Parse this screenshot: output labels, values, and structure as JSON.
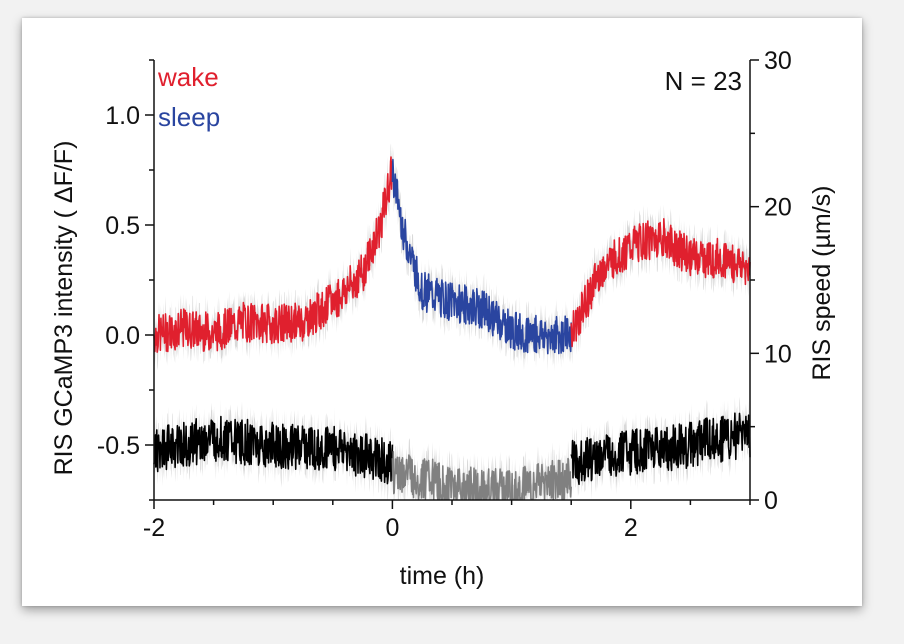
{
  "chart_data": {
    "type": "line",
    "xlabel": "time (h)",
    "ylabel_left": "RIS GCaMP3 intensity ( ΔF/F)",
    "ylabel_right": "RIS speed (µm/s)",
    "xlim": [
      -2,
      3
    ],
    "ylim_left": [
      -0.75,
      1.25
    ],
    "ylim_right": [
      0,
      30
    ],
    "x_ticks": [
      -2,
      0,
      2
    ],
    "x_tick_labels": [
      "-2",
      "0",
      "2"
    ],
    "y_left_ticks": [
      -0.5,
      0.0,
      0.5,
      1.0
    ],
    "y_left_tick_labels": [
      "-0.5",
      "0.0",
      "0.5",
      "1.0"
    ],
    "y_right_ticks": [
      0,
      10,
      20,
      30
    ],
    "y_right_tick_labels": [
      "0",
      "10",
      "20",
      "30"
    ],
    "annotation": "N = 23",
    "legend_placement": "top-left",
    "colors": {
      "wake": "#e0202e",
      "sleep": "#2a45a0",
      "speed_wake": "#000000",
      "speed_sleep": "#808080",
      "error_band": "#c8c8c8"
    },
    "series": [
      {
        "name": "wake",
        "axis": "left",
        "x": [
          -2.0,
          -1.75,
          -1.5,
          -1.25,
          -1.0,
          -0.75,
          -0.5,
          -0.25,
          -0.1,
          0.0
        ],
        "y": [
          0.0,
          0.03,
          0.01,
          0.06,
          0.05,
          0.06,
          0.15,
          0.28,
          0.5,
          0.75
        ]
      },
      {
        "name": "sleep",
        "axis": "left",
        "x": [
          0.0,
          0.1,
          0.25,
          0.5,
          0.75,
          1.0,
          1.25,
          1.5
        ],
        "y": [
          0.75,
          0.45,
          0.2,
          0.15,
          0.12,
          0.02,
          0.0,
          0.0
        ]
      },
      {
        "name": "wake",
        "axis": "left",
        "x": [
          1.5,
          1.75,
          2.0,
          2.25,
          2.5,
          2.75,
          3.0
        ],
        "y": [
          0.0,
          0.3,
          0.4,
          0.45,
          0.35,
          0.35,
          0.3
        ]
      },
      {
        "name": "speed wake",
        "axis": "right",
        "x": [
          -2.0,
          -1.5,
          -1.0,
          -0.5,
          0.0
        ],
        "y": [
          3.5,
          4.2,
          3.7,
          3.5,
          2.5
        ]
      },
      {
        "name": "speed sleep",
        "axis": "right",
        "x": [
          0.0,
          0.5,
          1.0,
          1.5
        ],
        "y": [
          2.0,
          0.8,
          0.5,
          1.5
        ]
      },
      {
        "name": "speed wake",
        "axis": "right",
        "x": [
          1.5,
          2.0,
          2.5,
          3.0
        ],
        "y": [
          2.5,
          3.2,
          3.8,
          4.5
        ]
      }
    ]
  }
}
